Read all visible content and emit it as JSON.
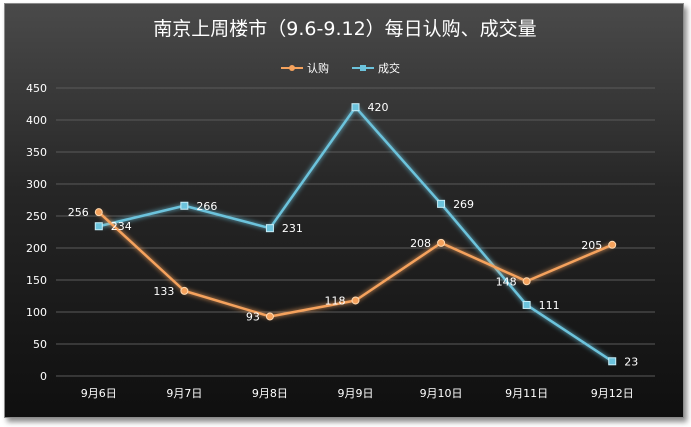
{
  "chart_data": {
    "type": "line",
    "title": "南京上周楼市（9.6-9.12）每日认购、成交量",
    "categories": [
      "9月6日",
      "9月7日",
      "9月8日",
      "9月9日",
      "9月10日",
      "9月11日",
      "9月12日"
    ],
    "ylim": [
      0,
      450
    ],
    "yticks": [
      "0",
      "50",
      "100",
      "150",
      "200",
      "250",
      "300",
      "350",
      "400",
      "450"
    ],
    "grid": true,
    "legend": "top-center",
    "series": [
      {
        "name": "认购",
        "values": [
          256,
          133,
          93,
          118,
          208,
          148,
          205
        ],
        "color": "#f5a25d",
        "marker": "circle"
      },
      {
        "name": "成交",
        "values": [
          234,
          266,
          231,
          420,
          269,
          111,
          23
        ],
        "color": "#6cc3dc",
        "marker": "square"
      }
    ],
    "colors": {
      "title": "#ffffff",
      "axis_text": "#ffffff",
      "grid": "#5a5a5a"
    }
  }
}
